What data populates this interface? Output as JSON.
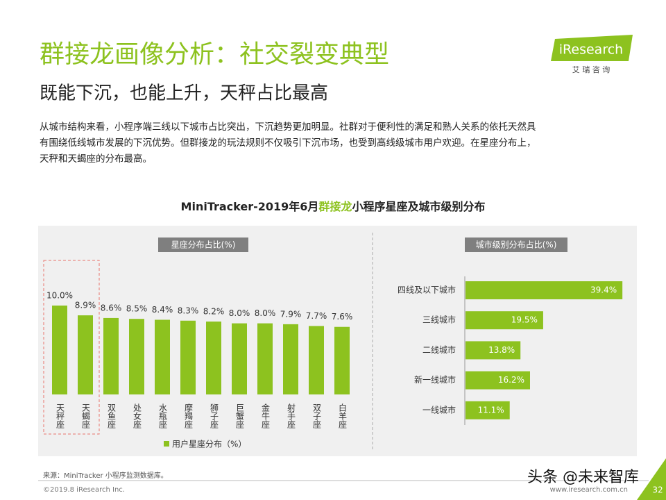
{
  "header": {
    "title": "群接龙画像分析：社交裂变典型",
    "subtitle": "既能下沉，也能上升，天秤占比最高",
    "logo": "iResearch",
    "logo_sub": "艾 瑞 咨 询"
  },
  "body": [
    "从城市结构来看，小程序端三线以下城市占比突出，下沉趋势更加明显。社群对于便利性的满足和熟人关系的依托天然具",
    "有围绕低线城市发展的下沉优势。但群接龙的玩法规则不仅吸引下沉市场，也受到高线级城市用户欢迎。在星座分布上，",
    "天秤和天蝎座的分布最高。"
  ],
  "figure_title": [
    "MiniTracker-2019年6月",
    "群接龙",
    "小程序星座及城市级别分布"
  ],
  "chart_data": [
    {
      "type": "bar",
      "title": "星座分布占比(%)",
      "categories": [
        "天秤座",
        "天蝎座",
        "双鱼座",
        "处女座",
        "水瓶座",
        "摩羯座",
        "狮子座",
        "巨蟹座",
        "金牛座",
        "射手座",
        "双子座",
        "白羊座"
      ],
      "series": [
        {
          "name": "用户星座分布（%）",
          "color": "#8dc21f",
          "values": [
            10.0,
            8.9,
            8.6,
            8.5,
            8.4,
            8.3,
            8.2,
            8.0,
            8.0,
            7.9,
            7.7,
            7.6
          ],
          "value_labels": [
            "10.0%",
            "8.9%",
            "8.6%",
            "8.5%",
            "8.4%",
            "8.3%",
            "8.2%",
            "8.0%",
            "8.0%",
            "7.9%",
            "7.7%",
            "7.6%"
          ]
        }
      ]
    },
    {
      "type": "barh",
      "title": "城市级别分布占比(%)",
      "color": "#8dc21f",
      "categories": [
        "四线及以下城市",
        "三线城市",
        "二线城市",
        "新一线城市",
        "一线城市"
      ],
      "values": [
        39.4,
        19.5,
        13.8,
        16.2,
        11.1
      ],
      "value_labels": [
        "39.4%",
        "19.5%",
        "13.8%",
        "16.2%",
        "11.1%"
      ]
    }
  ],
  "footer": {
    "source": "来源：MiniTracker 小程序监测数据库。",
    "copyright": "©2019.8 iResearch Inc.",
    "website": "www.iresearch.com.cn",
    "page": "32",
    "watermark": "头条 @未来智库"
  }
}
